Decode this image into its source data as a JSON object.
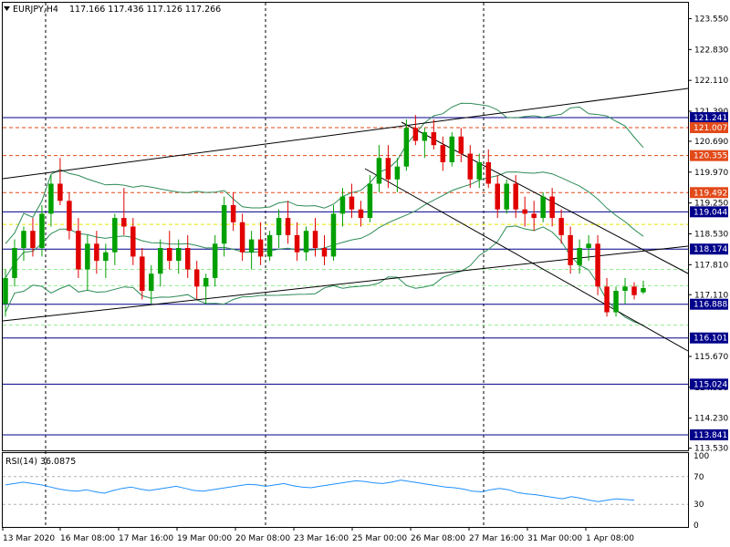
{
  "header": {
    "symbol": "EURJPY,H4",
    "ohlc": "117.166 117.436 117.126 117.266",
    "menu_icon": "triangle-down-icon"
  },
  "rsi": {
    "label": "RSI(14) 36.0875",
    "scale_labels": [
      "100",
      "70",
      "30",
      "0"
    ],
    "levels": [
      70,
      30
    ],
    "level_color": "#b0b0b0",
    "line_color": "#1e90ff",
    "values": [
      58,
      60,
      62,
      60,
      58,
      55,
      52,
      50,
      49,
      51,
      48,
      46,
      50,
      53,
      55,
      52,
      50,
      52,
      54,
      56,
      53,
      50,
      49,
      51,
      53,
      55,
      57,
      59,
      58,
      56,
      58,
      60,
      57,
      55,
      54,
      56,
      58,
      60,
      62,
      64,
      63,
      61,
      60,
      62,
      65,
      63,
      61,
      59,
      57,
      55,
      54,
      52,
      49,
      48,
      51,
      53,
      51,
      47,
      45,
      44,
      42,
      40,
      38,
      41,
      39,
      36,
      34,
      36,
      38,
      37,
      36
    ]
  },
  "price_axis": {
    "labels": [
      "123.550",
      "122.830",
      "122.110",
      "121.390",
      "120.690",
      "119.970",
      "119.250",
      "118.530",
      "117.810",
      "117.110",
      "115.670",
      "114.950",
      "114.230",
      "113.530"
    ]
  },
  "time_axis": {
    "labels": [
      "13 Mar 2020",
      "16 Mar 08:00",
      "17 Mar 16:00",
      "19 Mar 00:00",
      "20 Mar 08:00",
      "23 Mar 16:00",
      "25 Mar 00:00",
      "26 Mar 08:00",
      "27 Mar 16:00",
      "31 Mar 00:00",
      "1 Apr 08:00"
    ]
  },
  "levels": [
    {
      "price": "121.241",
      "kind": "solid",
      "color": "#00008b",
      "tag_bg": "#00008b",
      "tag_fg": "#ffffff"
    },
    {
      "price": "121.007",
      "kind": "dashed",
      "color": "#e24a1a",
      "tag_bg": "#e24a1a",
      "tag_fg": "#ffffff"
    },
    {
      "price": "120.355",
      "kind": "dashed",
      "color": "#e24a1a",
      "tag_bg": "#e24a1a",
      "tag_fg": "#ffffff"
    },
    {
      "price": "119.492",
      "kind": "dashed",
      "color": "#e24a1a",
      "tag_bg": "#e24a1a",
      "tag_fg": "#ffffff"
    },
    {
      "price": "119.044",
      "kind": "solid",
      "color": "#00008b",
      "tag_bg": "#00008b",
      "tag_fg": "#ffffff"
    },
    {
      "price": "118.174",
      "kind": "solid",
      "color": "#00008b",
      "tag_bg": "#00008b",
      "tag_fg": "#ffffff"
    },
    {
      "price": "116.888",
      "kind": "solid",
      "color": "#00008b",
      "tag_bg": "#00008b",
      "tag_fg": "#ffffff"
    },
    {
      "price": "116.101",
      "kind": "solid",
      "color": "#00008b",
      "tag_bg": "#00008b",
      "tag_fg": "#ffffff"
    },
    {
      "price": "115.024",
      "kind": "solid",
      "color": "#00008b",
      "tag_bg": "#00008b",
      "tag_fg": "#ffffff"
    },
    {
      "price": "113.841",
      "kind": "solid",
      "color": "#00008b",
      "tag_bg": "#00008b",
      "tag_fg": "#ffffff"
    }
  ],
  "colors": {
    "bull": "#00a000",
    "bear": "#e00000",
    "band": "#2e8b57",
    "trend": "#000000",
    "yellow_level": "#e8e800",
    "light_green_level": "#90ee90"
  },
  "chart_data": {
    "type": "candlestick",
    "symbol": "EURJPY",
    "timeframe": "H4",
    "ylim": [
      113.5,
      123.9
    ],
    "candles": [
      [
        116.9,
        117.7,
        116.6,
        117.5
      ],
      [
        117.5,
        118.4,
        117.3,
        118.2
      ],
      [
        118.2,
        118.7,
        117.9,
        118.6
      ],
      [
        118.6,
        118.9,
        118.0,
        118.2
      ],
      [
        118.2,
        119.2,
        118.0,
        119.0
      ],
      [
        119.0,
        119.9,
        118.7,
        119.7
      ],
      [
        119.7,
        120.3,
        119.2,
        119.3
      ],
      [
        119.3,
        119.5,
        118.4,
        118.6
      ],
      [
        118.6,
        118.9,
        117.5,
        117.7
      ],
      [
        117.7,
        118.5,
        117.2,
        118.3
      ],
      [
        118.3,
        118.6,
        117.6,
        117.9
      ],
      [
        117.9,
        118.3,
        117.5,
        118.1
      ],
      [
        118.1,
        119.0,
        117.8,
        118.9
      ],
      [
        118.9,
        119.6,
        118.5,
        118.7
      ],
      [
        118.7,
        118.9,
        117.8,
        118.0
      ],
      [
        118.0,
        118.2,
        117.0,
        117.2
      ],
      [
        117.2,
        117.8,
        116.9,
        117.6
      ],
      [
        117.6,
        118.4,
        117.3,
        118.2
      ],
      [
        118.2,
        118.6,
        117.7,
        117.9
      ],
      [
        117.9,
        118.4,
        117.6,
        118.2
      ],
      [
        118.2,
        118.5,
        117.5,
        117.7
      ],
      [
        117.7,
        117.9,
        117.0,
        117.3
      ],
      [
        117.3,
        117.6,
        116.9,
        117.5
      ],
      [
        117.5,
        118.5,
        117.3,
        118.3
      ],
      [
        118.3,
        119.4,
        118.0,
        119.2
      ],
      [
        119.2,
        119.5,
        118.6,
        118.8
      ],
      [
        118.8,
        119.0,
        117.9,
        118.1
      ],
      [
        118.1,
        118.6,
        117.7,
        118.4
      ],
      [
        118.4,
        118.8,
        117.8,
        118.0
      ],
      [
        118.0,
        118.6,
        117.9,
        118.5
      ],
      [
        118.5,
        119.1,
        118.2,
        118.9
      ],
      [
        118.9,
        119.3,
        118.3,
        118.5
      ],
      [
        118.5,
        118.8,
        117.9,
        118.1
      ],
      [
        118.1,
        118.7,
        117.9,
        118.6
      ],
      [
        118.6,
        118.9,
        118.0,
        118.2
      ],
      [
        118.2,
        118.5,
        117.8,
        118.0
      ],
      [
        118.0,
        119.2,
        117.9,
        119.0
      ],
      [
        119.0,
        119.6,
        118.7,
        119.4
      ],
      [
        119.4,
        119.7,
        118.9,
        119.1
      ],
      [
        119.1,
        119.3,
        118.7,
        118.9
      ],
      [
        118.9,
        119.9,
        118.8,
        119.7
      ],
      [
        119.7,
        120.6,
        119.5,
        120.3
      ],
      [
        120.3,
        120.6,
        119.6,
        119.8
      ],
      [
        119.8,
        120.3,
        119.5,
        120.1
      ],
      [
        120.1,
        121.2,
        120.0,
        121.0
      ],
      [
        121.0,
        121.3,
        120.6,
        120.7
      ],
      [
        120.7,
        121.0,
        120.3,
        120.9
      ],
      [
        120.9,
        121.2,
        120.5,
        120.6
      ],
      [
        120.6,
        120.8,
        120.0,
        120.2
      ],
      [
        120.2,
        120.9,
        120.1,
        120.8
      ],
      [
        120.8,
        121.0,
        120.2,
        120.4
      ],
      [
        120.4,
        120.6,
        119.6,
        119.8
      ],
      [
        119.8,
        120.4,
        119.6,
        120.2
      ],
      [
        120.2,
        120.5,
        119.6,
        119.7
      ],
      [
        119.7,
        119.9,
        118.9,
        119.1
      ],
      [
        119.1,
        119.8,
        119.0,
        119.7
      ],
      [
        119.7,
        119.9,
        118.9,
        119.1
      ],
      [
        119.1,
        119.4,
        118.7,
        119.0
      ],
      [
        119.0,
        119.3,
        118.6,
        118.9
      ],
      [
        118.9,
        119.5,
        118.8,
        119.4
      ],
      [
        119.4,
        119.6,
        118.7,
        118.9
      ],
      [
        118.9,
        119.1,
        118.3,
        118.5
      ],
      [
        118.5,
        118.7,
        117.6,
        117.8
      ],
      [
        117.8,
        118.4,
        117.6,
        118.2
      ],
      [
        118.2,
        118.5,
        117.9,
        118.3
      ],
      [
        118.3,
        118.5,
        117.1,
        117.3
      ],
      [
        117.3,
        117.5,
        116.6,
        116.7
      ],
      [
        116.7,
        117.3,
        116.6,
        117.2
      ],
      [
        117.2,
        117.5,
        116.9,
        117.3
      ],
      [
        117.3,
        117.4,
        117.0,
        117.1
      ],
      [
        117.166,
        117.436,
        117.126,
        117.266
      ]
    ]
  }
}
